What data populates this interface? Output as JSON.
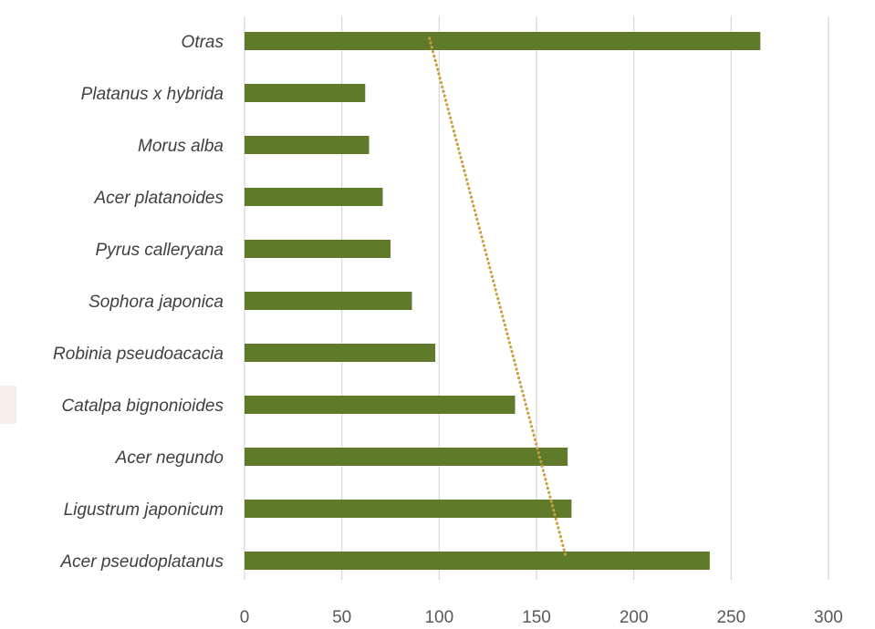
{
  "chart_data": {
    "type": "bar",
    "orientation": "horizontal",
    "categories": [
      "Otras",
      "Platanus x hybrida",
      "Morus alba",
      "Acer platanoides",
      "Pyrus calleryana",
      "Sophora japonica",
      "Robinia pseudoacacia",
      "Catalpa bignonioides",
      "Acer negundo",
      "Ligustrum japonicum",
      "Acer pseudoplatanus"
    ],
    "values": [
      265,
      62,
      64,
      71,
      75,
      86,
      98,
      139,
      166,
      168,
      239
    ],
    "xlim": [
      0,
      300
    ],
    "xticks": [
      "0",
      "50",
      "100",
      "150",
      "200",
      "250",
      "300"
    ],
    "grid": "vertical",
    "trendline": {
      "type": "linear",
      "style": "dotted",
      "from": {
        "category": "Otras",
        "value": 95
      },
      "to": {
        "category": "Acer pseudoplatanus",
        "value": 165
      }
    },
    "title": "",
    "xlabel": "",
    "ylabel": "",
    "colors": {
      "bar": "#5e7a2a",
      "trendline": "#c9a03c",
      "grid": "#d9d9d9",
      "label": "#404040",
      "tick": "#595959"
    }
  }
}
